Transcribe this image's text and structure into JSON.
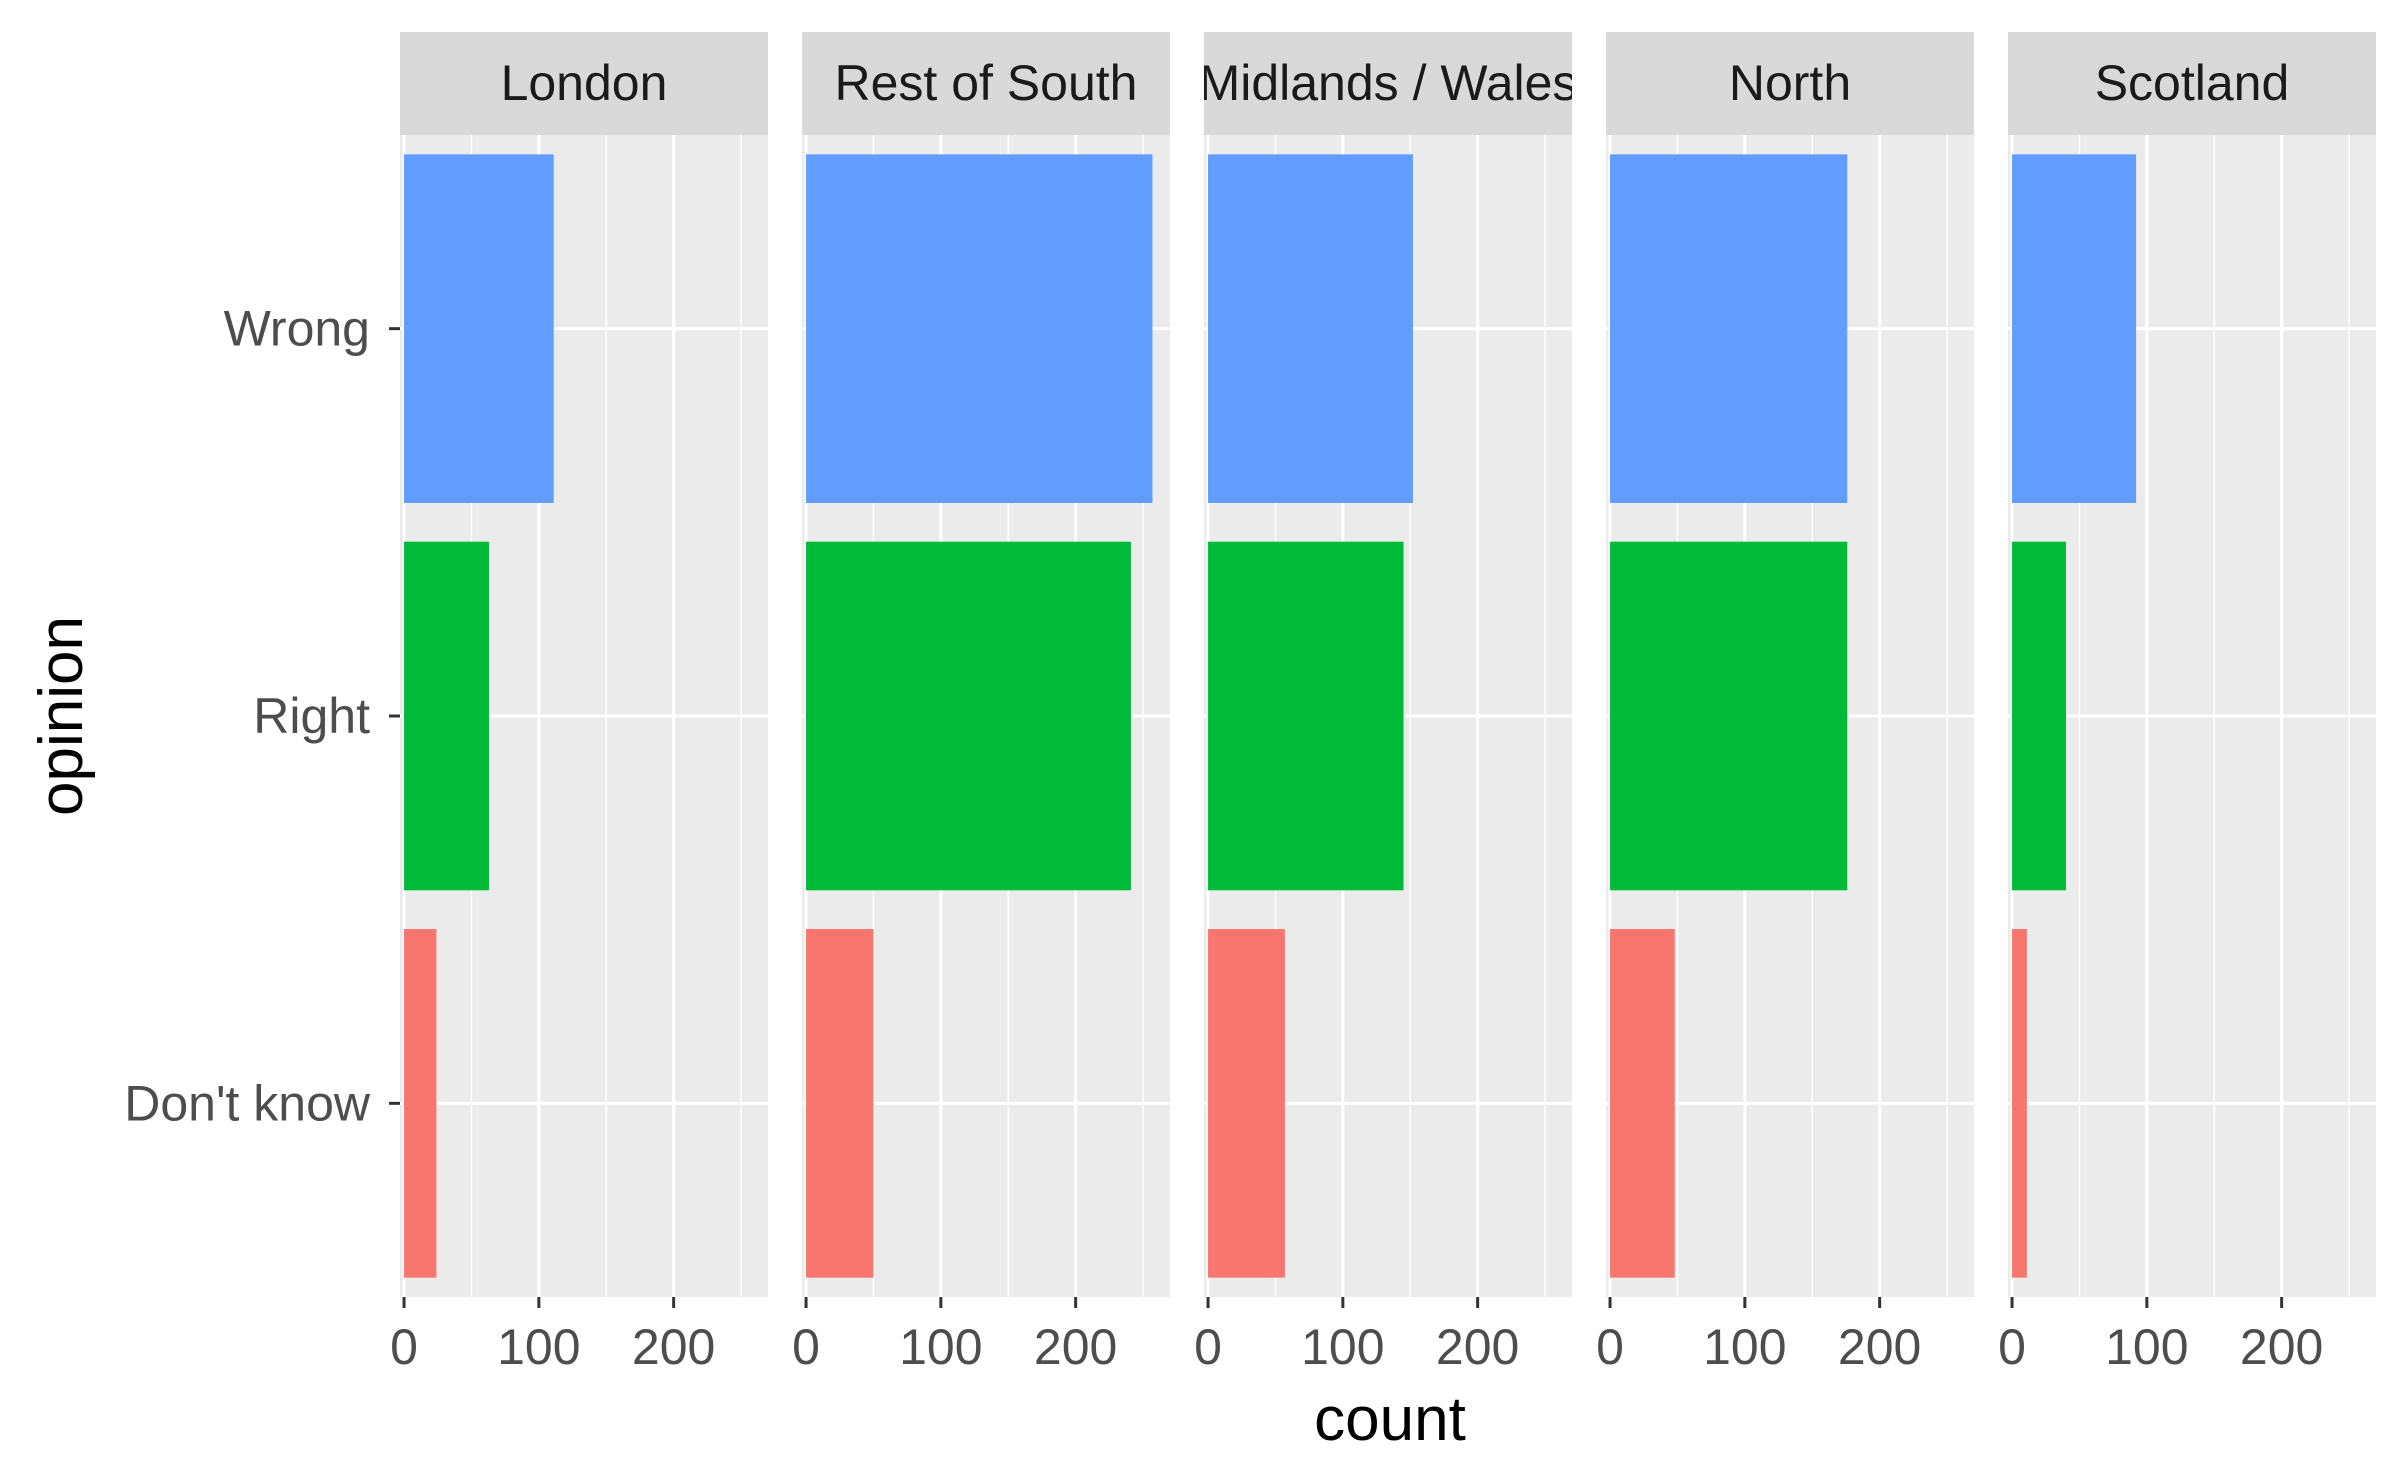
{
  "chart_data": {
    "type": "bar",
    "orientation": "horizontal",
    "facet": "panels",
    "xlabel": "count",
    "ylabel": "opinion",
    "xlim": [
      -3,
      270
    ],
    "x_ticks": [
      0,
      100,
      200
    ],
    "categories": [
      "Don't know",
      "Right",
      "Wrong"
    ],
    "category_colors": {
      "Don't know": "#F8766D",
      "Right": "#00BA38",
      "Wrong": "#619CFF"
    },
    "panel_background": "#EBEBEB",
    "strip_background": "#D9D9D9",
    "grid_color": "#FFFFFF",
    "grid": true,
    "legend": "none",
    "panels": [
      {
        "name": "London",
        "values": [
          24,
          63,
          111
        ]
      },
      {
        "name": "Rest of South",
        "values": [
          50,
          241,
          257
        ]
      },
      {
        "name": "Midlands / Wales",
        "values": [
          57,
          145,
          152
        ]
      },
      {
        "name": "North",
        "values": [
          48,
          176,
          176
        ]
      },
      {
        "name": "Scotland",
        "values": [
          11,
          40,
          92
        ]
      }
    ]
  }
}
